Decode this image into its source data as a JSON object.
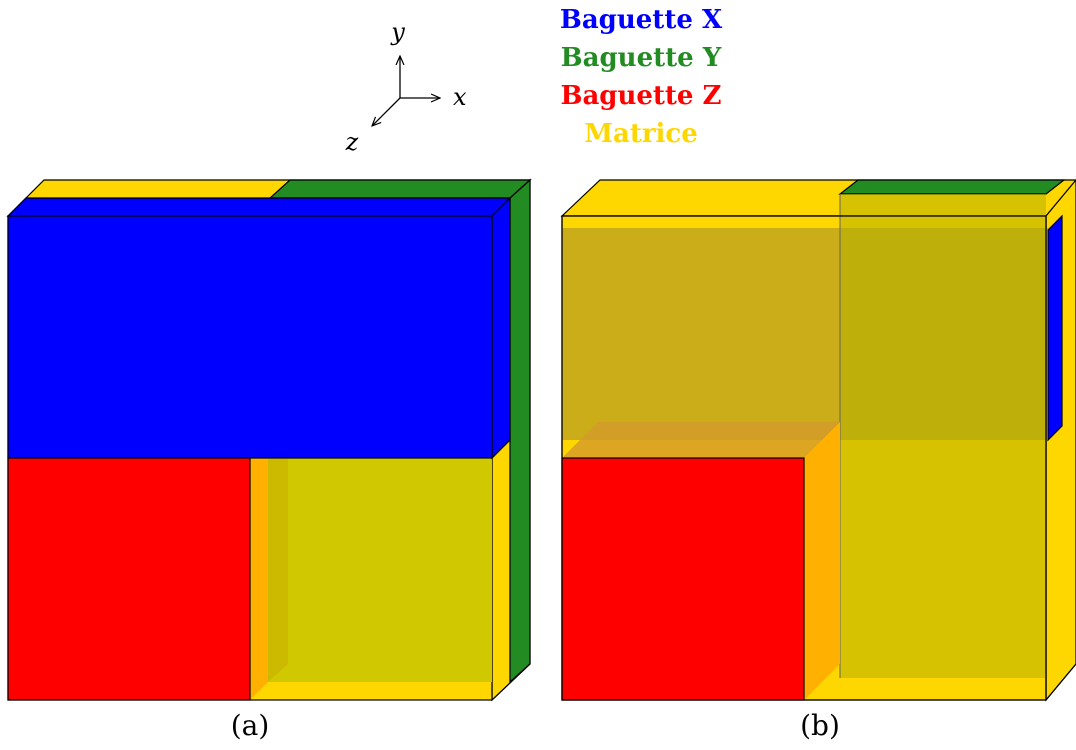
{
  "axes": {
    "x": "x",
    "y": "y",
    "z": "z"
  },
  "legend": [
    {
      "prefix": "Baguette",
      "suffix": "X",
      "color": "#0000ff"
    },
    {
      "prefix": "Baguette",
      "suffix": "Y",
      "color": "#228b22"
    },
    {
      "prefix": "Baguette",
      "suffix": "Z",
      "color": "#ff0000"
    },
    {
      "prefix": "Matrice",
      "suffix": "",
      "color": "#ffd700"
    }
  ],
  "captions": {
    "a": "(a)",
    "b": "(b)"
  },
  "colors": {
    "rod_x": "#0000ff",
    "rod_y": "#228b22",
    "rod_z": "#ff0000",
    "matrix": "#ffd700",
    "orange_face": "#ffb000",
    "olive_face": "#d0c800",
    "outline": "#000000"
  }
}
